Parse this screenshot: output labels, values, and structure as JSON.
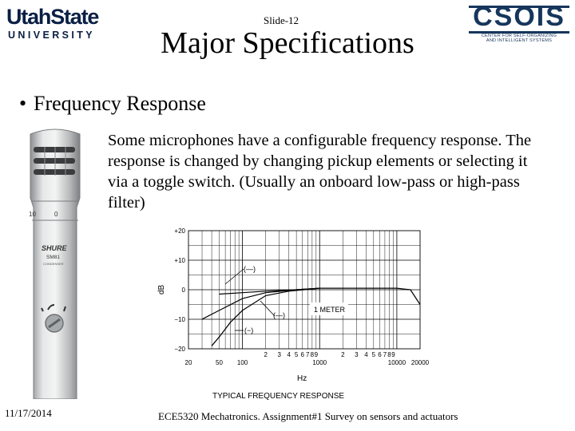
{
  "logos": {
    "left": {
      "line1": "UtahState",
      "line2": "UNIVERSITY"
    },
    "right": {
      "word": "CSOIS",
      "sub1": "CENTER FOR SELF-ORGANIZING",
      "sub2": "AND INTELLIGENT SYSTEMS"
    }
  },
  "slide": {
    "number": "Slide-12",
    "title": "Major Specifications",
    "bullet": "Frequency Response",
    "body": "Some microphones have a configurable frequency response. The response is changed by changing pickup elements or selecting it via a toggle switch. (Usually an onboard low-pass or high-pass filter)"
  },
  "mic": {
    "brand": "SHURE",
    "model": "SM81",
    "type": "CONDENSER",
    "scale_left": "10",
    "scale_right": "0"
  },
  "chart_data": {
    "type": "line",
    "title": "TYPICAL FREQUENCY RESPONSE",
    "xlabel": "Hz",
    "ylabel": "dB",
    "xscale": "log",
    "xlim": [
      20,
      20000
    ],
    "ylim": [
      -20,
      20
    ],
    "ytick_labels": [
      "+20",
      "+10",
      "0",
      "−10",
      "−20"
    ],
    "yticks": [
      20,
      10,
      0,
      -10,
      -20
    ],
    "xtick_labels": [
      {
        "x": 20,
        "label": "20"
      },
      {
        "x": 50,
        "label": "50"
      },
      {
        "x": 100,
        "label": "100"
      },
      {
        "x": 200,
        "label": "2"
      },
      {
        "x": 300,
        "label": "3"
      },
      {
        "x": 400,
        "label": "4"
      },
      {
        "x": 500,
        "label": "5"
      },
      {
        "x": 600,
        "label": "6"
      },
      {
        "x": 700,
        "label": "7"
      },
      {
        "x": 800,
        "label": "8"
      },
      {
        "x": 900,
        "label": "9"
      },
      {
        "x": 1000,
        "label": "1000"
      },
      {
        "x": 2000,
        "label": "2"
      },
      {
        "x": 3000,
        "label": "3"
      },
      {
        "x": 4000,
        "label": "4"
      },
      {
        "x": 5000,
        "label": "5"
      },
      {
        "x": 6000,
        "label": "6"
      },
      {
        "x": 7000,
        "label": "7"
      },
      {
        "x": 8000,
        "label": "8"
      },
      {
        "x": 9000,
        "label": "9"
      },
      {
        "x": 10000,
        "label": "10000"
      },
      {
        "x": 20000,
        "label": "20000"
      }
    ],
    "annotations": [
      "(—)",
      "(—)",
      "(−)",
      "1 METER"
    ],
    "series": [
      {
        "values": [
          [
            50,
            -1.5
          ],
          [
            100,
            -1
          ],
          [
            200,
            -0.5
          ],
          [
            500,
            0
          ],
          [
            1000,
            0.5
          ],
          [
            5000,
            0.5
          ],
          [
            10000,
            0.5
          ],
          [
            15000,
            0
          ],
          [
            20000,
            -5
          ]
        ]
      },
      {
        "values": [
          [
            30,
            -10
          ],
          [
            50,
            -7
          ],
          [
            100,
            -3
          ],
          [
            200,
            -1
          ],
          [
            500,
            0
          ],
          [
            1000,
            0.5
          ]
        ]
      },
      {
        "values": [
          [
            40,
            -19
          ],
          [
            50,
            -16
          ],
          [
            70,
            -11
          ],
          [
            100,
            -7
          ],
          [
            200,
            -2
          ],
          [
            400,
            -0.5
          ],
          [
            1000,
            0.5
          ]
        ]
      }
    ]
  },
  "footer": {
    "date": "11/17/2014",
    "text": "ECE5320 Mechatronics. Assignment#1 Survey on sensors and actuators"
  }
}
